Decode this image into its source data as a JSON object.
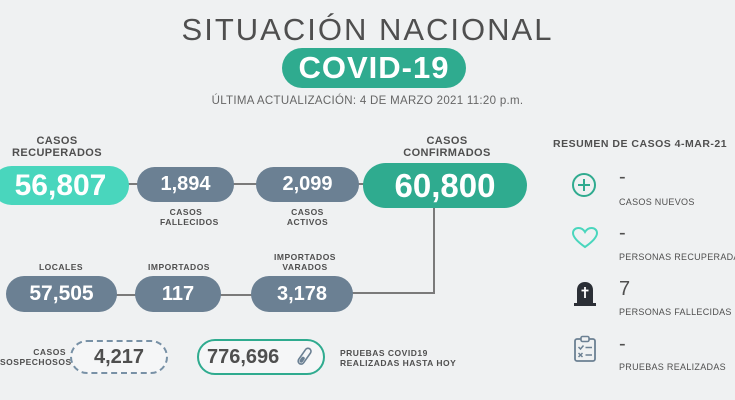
{
  "header": {
    "title": "SITUACIÓN NACIONAL",
    "badge": "COVID-19",
    "updated": "ÚLTIMA ACTUALIZACIÓN: 4 DE MARZO 2021 11:20 p.m."
  },
  "row1": {
    "recovered_label": "CASOS RECUPERADOS",
    "recovered_value": "56,807",
    "deaths_value": "1,894",
    "deaths_label": "CASOS FALLECIDOS",
    "active_value": "2,099",
    "active_label": "CASOS ACTIVOS",
    "confirmed_label": "CASOS CONFIRMADOS",
    "confirmed_value": "60,800"
  },
  "row2": {
    "local_label": "LOCALES",
    "local_value": "57,505",
    "imported_label": "IMPORTADOS",
    "imported_value": "117",
    "stranded_label": "IMPORTADOS VARADOS",
    "stranded_value": "3,178"
  },
  "row3": {
    "suspected_label": "CASOS SOSPECHOSOS",
    "suspected_value": "4,217",
    "tests_value": "776,696",
    "tests_label": "PRUEBAS COVID19 REALIZADAS HASTA HOY"
  },
  "summary": {
    "title": "RESUMEN DE CASOS 4-MAR-21",
    "items": [
      {
        "icon": "plus-circle-icon",
        "value": "-",
        "label": "CASOS NUEVOS"
      },
      {
        "icon": "heart-icon",
        "value": "-",
        "label": "PERSONAS RECUPERADAS"
      },
      {
        "icon": "tombstone-icon",
        "value": "7",
        "label": "PERSONAS FALLECIDAS"
      },
      {
        "icon": "clipboard-icon",
        "value": "-",
        "label": "PRUEBAS REALIZADAS"
      }
    ]
  },
  "colors": {
    "accent": "#2fab8f",
    "mint": "#49d6bd",
    "slate": "#6b8093",
    "background": "#eff1f2"
  }
}
